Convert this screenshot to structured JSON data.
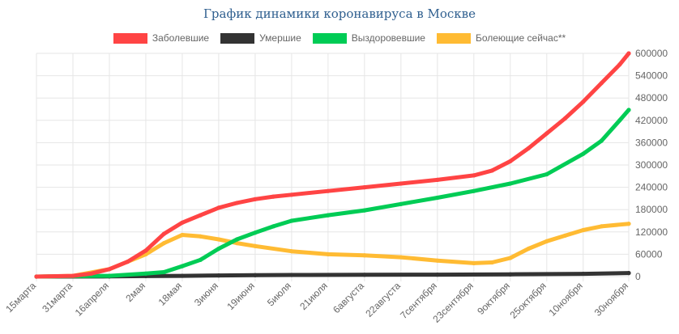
{
  "chart_data": {
    "type": "line",
    "title": "График динамики коронавируса в Москве",
    "xlabel": "",
    "ylabel": "",
    "ylim": [
      0,
      600000
    ],
    "y_ticks": [
      0,
      60000,
      120000,
      180000,
      240000,
      300000,
      360000,
      420000,
      480000,
      540000,
      600000
    ],
    "grid": true,
    "legend_position": "top",
    "x_start": "2020-03-15",
    "x_end": "2020-11-30",
    "x_ticks": [
      {
        "label": "15марта",
        "date": "2020-03-15"
      },
      {
        "label": "31марта",
        "date": "2020-03-31"
      },
      {
        "label": "16апреля",
        "date": "2020-04-16"
      },
      {
        "label": "2мая",
        "date": "2020-05-02"
      },
      {
        "label": "18мая",
        "date": "2020-05-18"
      },
      {
        "label": "3июня",
        "date": "2020-06-03"
      },
      {
        "label": "19июня",
        "date": "2020-06-19"
      },
      {
        "label": "5июля",
        "date": "2020-07-05"
      },
      {
        "label": "21июля",
        "date": "2020-07-21"
      },
      {
        "label": "6августа",
        "date": "2020-08-06"
      },
      {
        "label": "22августа",
        "date": "2020-08-22"
      },
      {
        "label": "7сентября",
        "date": "2020-09-07"
      },
      {
        "label": "23сентября",
        "date": "2020-09-23"
      },
      {
        "label": "9октября",
        "date": "2020-10-09"
      },
      {
        "label": "25октября",
        "date": "2020-10-25"
      },
      {
        "label": "10ноября",
        "date": "2020-11-10"
      },
      {
        "label": "30ноября",
        "date": "2020-11-30"
      }
    ],
    "series": [
      {
        "name": "Заболевшие",
        "color": "#ff4444",
        "points": [
          [
            "2020-03-15",
            0
          ],
          [
            "2020-03-31",
            2000
          ],
          [
            "2020-04-08",
            8000
          ],
          [
            "2020-04-16",
            20000
          ],
          [
            "2020-04-24",
            40000
          ],
          [
            "2020-05-02",
            70000
          ],
          [
            "2020-05-10",
            115000
          ],
          [
            "2020-05-18",
            145000
          ],
          [
            "2020-05-26",
            165000
          ],
          [
            "2020-06-03",
            185000
          ],
          [
            "2020-06-11",
            198000
          ],
          [
            "2020-06-19",
            208000
          ],
          [
            "2020-06-27",
            215000
          ],
          [
            "2020-07-05",
            220000
          ],
          [
            "2020-07-21",
            230000
          ],
          [
            "2020-08-06",
            240000
          ],
          [
            "2020-08-22",
            250000
          ],
          [
            "2020-09-07",
            260000
          ],
          [
            "2020-09-23",
            272000
          ],
          [
            "2020-10-01",
            285000
          ],
          [
            "2020-10-09",
            310000
          ],
          [
            "2020-10-17",
            345000
          ],
          [
            "2020-10-25",
            385000
          ],
          [
            "2020-11-02",
            425000
          ],
          [
            "2020-11-10",
            470000
          ],
          [
            "2020-11-18",
            520000
          ],
          [
            "2020-11-26",
            570000
          ],
          [
            "2020-11-30",
            600000
          ]
        ]
      },
      {
        "name": "Умершие",
        "color": "#333333",
        "points": [
          [
            "2020-03-15",
            0
          ],
          [
            "2020-04-16",
            500
          ],
          [
            "2020-05-02",
            1200
          ],
          [
            "2020-05-18",
            2000
          ],
          [
            "2020-06-03",
            3000
          ],
          [
            "2020-06-19",
            3800
          ],
          [
            "2020-07-05",
            4300
          ],
          [
            "2020-08-06",
            4800
          ],
          [
            "2020-09-07",
            5200
          ],
          [
            "2020-10-09",
            6000
          ],
          [
            "2020-11-10",
            7500
          ],
          [
            "2020-11-30",
            9500
          ]
        ]
      },
      {
        "name": "Выздоровевшие",
        "color": "#00cc55",
        "points": [
          [
            "2020-03-15",
            0
          ],
          [
            "2020-04-16",
            2000
          ],
          [
            "2020-05-02",
            8000
          ],
          [
            "2020-05-10",
            12000
          ],
          [
            "2020-05-18",
            28000
          ],
          [
            "2020-05-26",
            45000
          ],
          [
            "2020-06-03",
            75000
          ],
          [
            "2020-06-11",
            100000
          ],
          [
            "2020-06-19",
            118000
          ],
          [
            "2020-06-27",
            135000
          ],
          [
            "2020-07-05",
            150000
          ],
          [
            "2020-07-21",
            165000
          ],
          [
            "2020-08-06",
            178000
          ],
          [
            "2020-08-22",
            195000
          ],
          [
            "2020-09-07",
            212000
          ],
          [
            "2020-09-23",
            230000
          ],
          [
            "2020-10-09",
            250000
          ],
          [
            "2020-10-25",
            275000
          ],
          [
            "2020-11-10",
            330000
          ],
          [
            "2020-11-18",
            365000
          ],
          [
            "2020-11-26",
            420000
          ],
          [
            "2020-11-30",
            448000
          ]
        ]
      },
      {
        "name": "Болеющие сейчас**",
        "color": "#ffbb33",
        "points": [
          [
            "2020-03-15",
            0
          ],
          [
            "2020-03-31",
            2000
          ],
          [
            "2020-04-16",
            20000
          ],
          [
            "2020-05-02",
            60000
          ],
          [
            "2020-05-10",
            90000
          ],
          [
            "2020-05-18",
            112000
          ],
          [
            "2020-05-26",
            108000
          ],
          [
            "2020-06-03",
            100000
          ],
          [
            "2020-06-11",
            90000
          ],
          [
            "2020-06-19",
            82000
          ],
          [
            "2020-07-05",
            68000
          ],
          [
            "2020-07-21",
            60000
          ],
          [
            "2020-08-06",
            57000
          ],
          [
            "2020-08-22",
            52000
          ],
          [
            "2020-09-07",
            43000
          ],
          [
            "2020-09-23",
            36000
          ],
          [
            "2020-10-01",
            38000
          ],
          [
            "2020-10-09",
            50000
          ],
          [
            "2020-10-17",
            75000
          ],
          [
            "2020-10-25",
            95000
          ],
          [
            "2020-11-02",
            110000
          ],
          [
            "2020-11-10",
            125000
          ],
          [
            "2020-11-18",
            135000
          ],
          [
            "2020-11-30",
            142000
          ]
        ]
      }
    ]
  }
}
